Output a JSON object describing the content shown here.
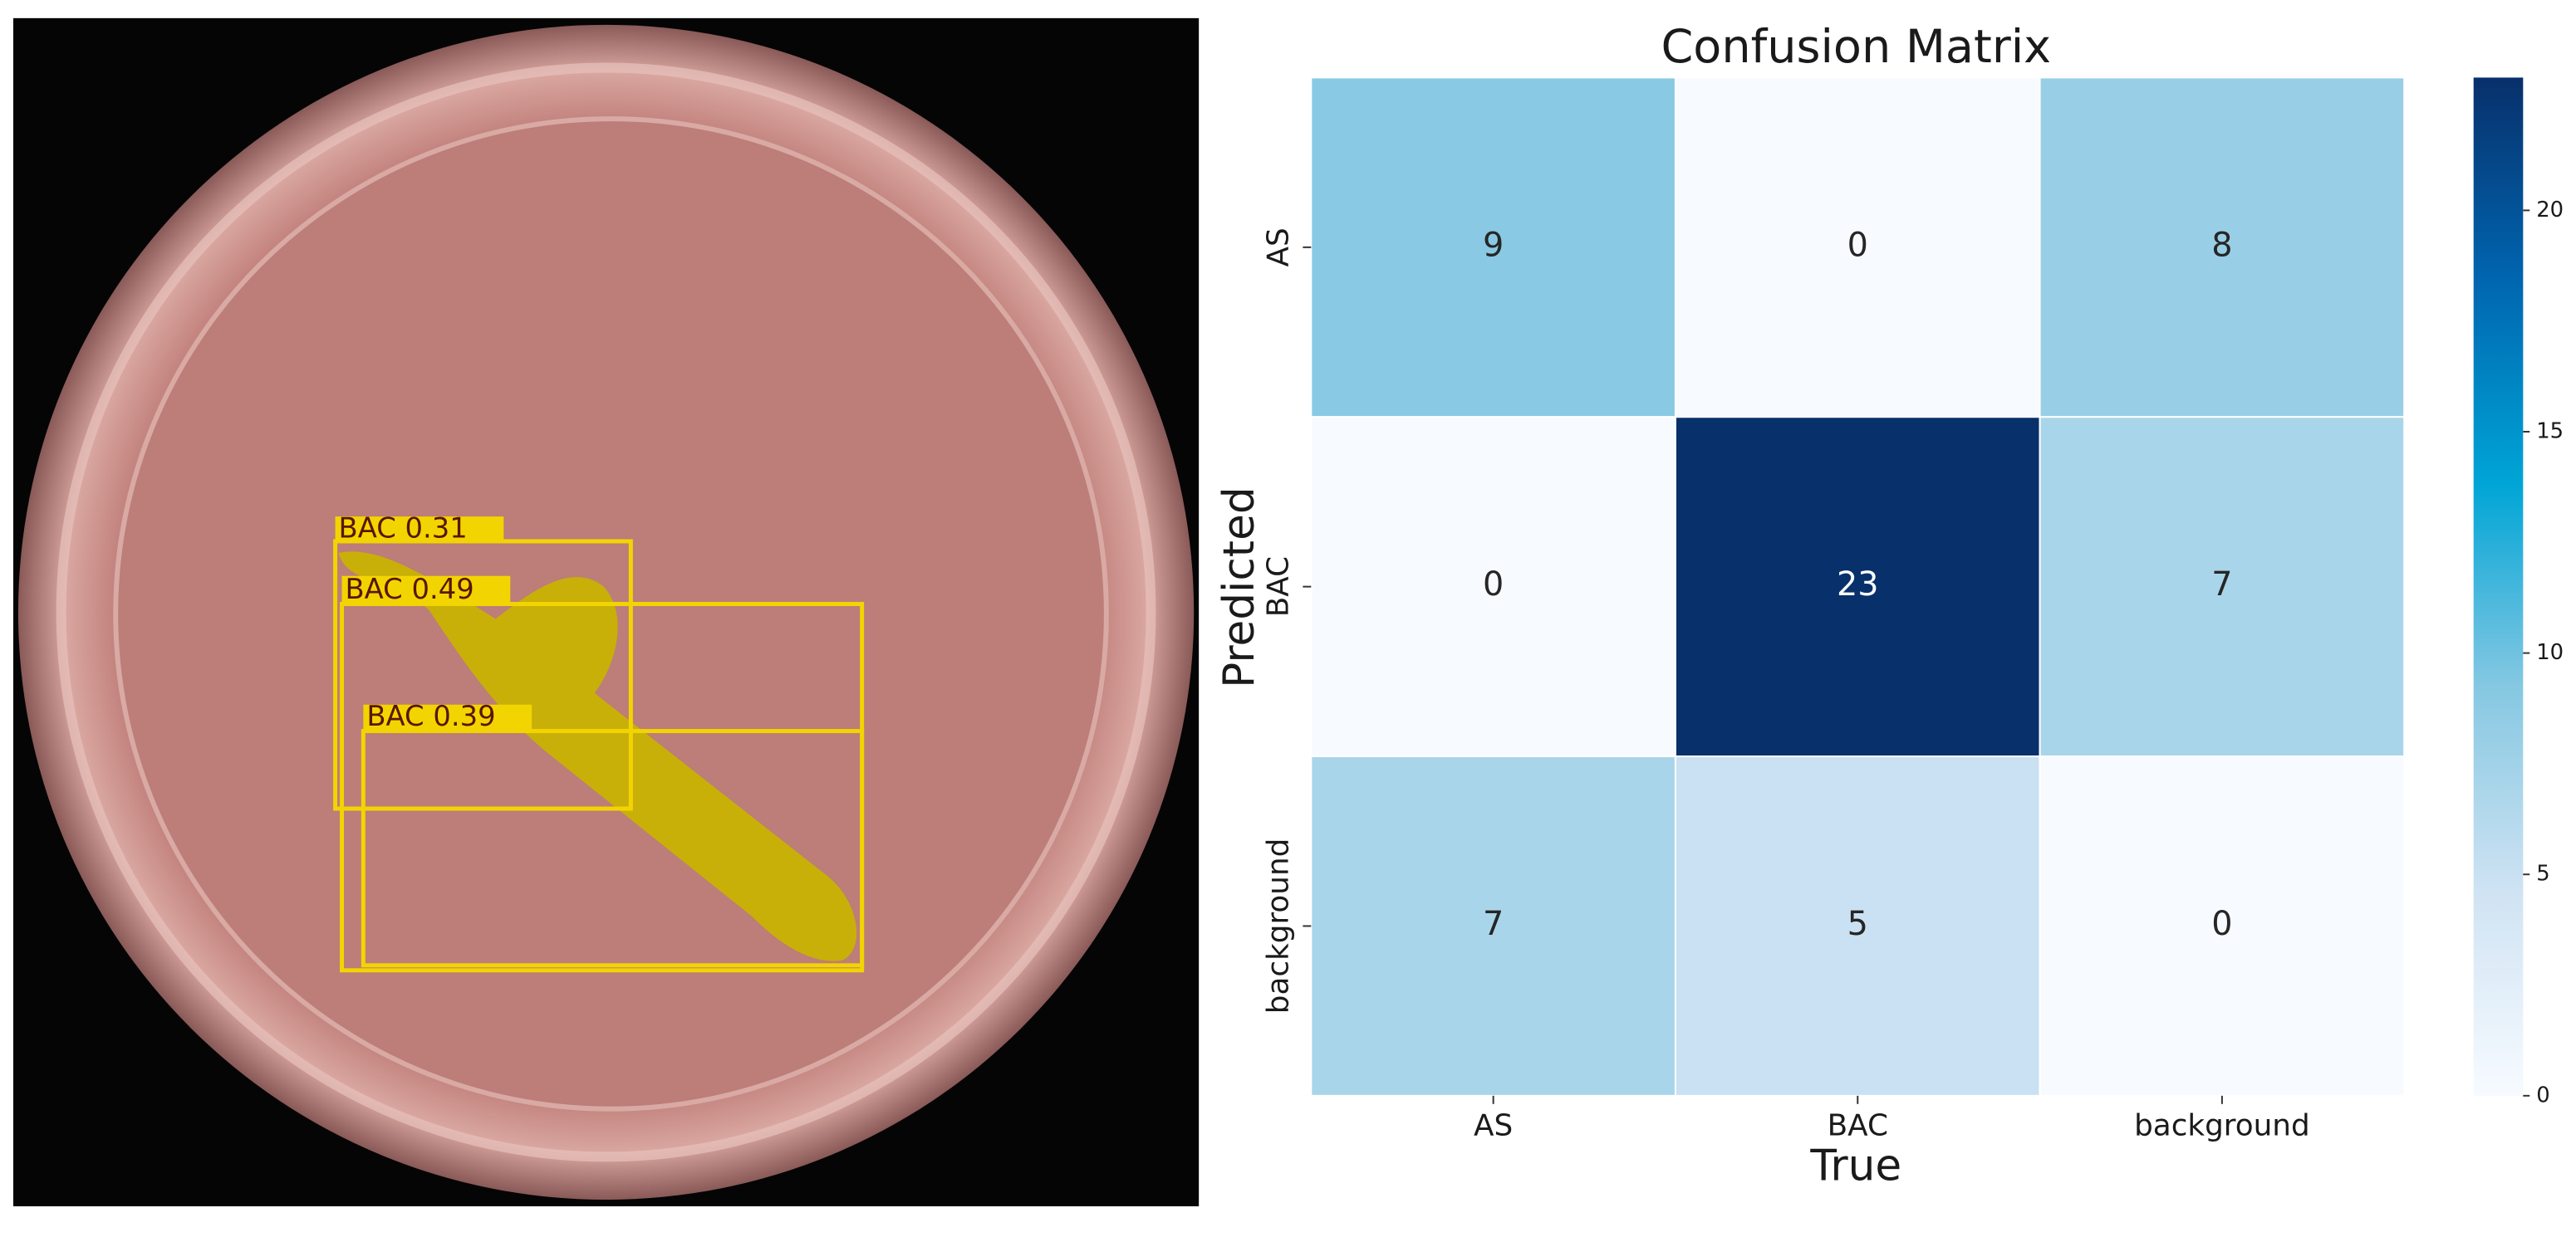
{
  "image": {
    "detections": [
      {
        "label": "BAC 0.31"
      },
      {
        "label": "BAC 0.49"
      },
      {
        "label": "BAC 0.39"
      }
    ]
  },
  "chart_data": {
    "type": "heatmap",
    "title": "Confusion Matrix",
    "x_label": "True",
    "y_label": "Predicted",
    "x_categories": [
      "AS",
      "BAC",
      "background"
    ],
    "y_categories": [
      "AS",
      "BAC",
      "background"
    ],
    "values": [
      [
        9,
        0,
        8
      ],
      [
        0,
        23,
        7
      ],
      [
        7,
        5,
        0
      ]
    ],
    "zlim": [
      0,
      23
    ],
    "zticks": [
      0,
      5,
      10,
      15,
      20
    ],
    "colorscale": [
      "#f7fbff",
      "#cfe3f3",
      "#86c8e2",
      "#00a5d6",
      "#0066b0",
      "#08306b"
    ],
    "colorbar": true
  }
}
